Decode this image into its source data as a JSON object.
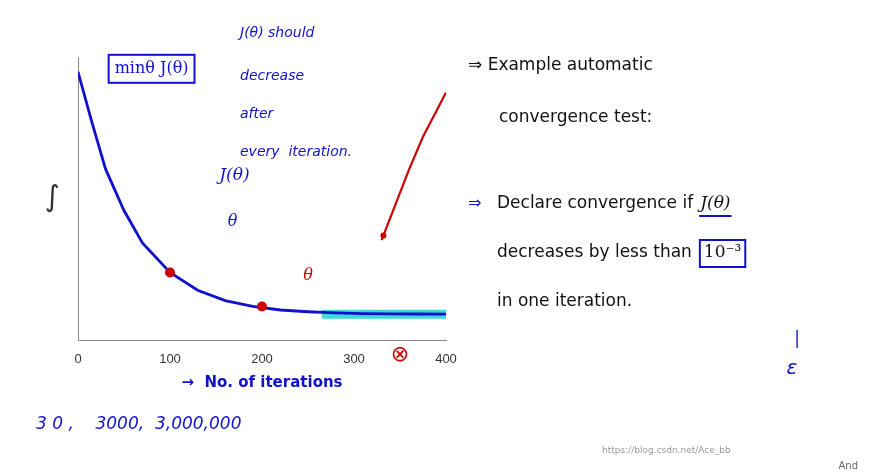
{
  "chart_data": {
    "type": "line",
    "xlabel": "→  No. of iterations",
    "ylabel": "∫",
    "xlim": [
      0,
      400
    ],
    "xticks": [
      0,
      100,
      200,
      300,
      400
    ],
    "ylim": [
      0.04,
      1.0
    ],
    "tick_labels": "x",
    "grid": false,
    "series": [
      {
        "type": "line",
        "color": "#1111cc",
        "x": [
          0,
          15,
          30,
          50,
          70,
          100,
          130,
          160,
          190,
          220,
          250,
          280,
          310,
          340,
          370,
          400
        ],
        "values": [
          0.95,
          0.78,
          0.62,
          0.48,
          0.37,
          0.27,
          0.21,
          0.175,
          0.155,
          0.143,
          0.137,
          0.133,
          0.131,
          0.13,
          0.1295,
          0.129
        ]
      },
      {
        "type": "line",
        "color": "#00cccc",
        "x": [
          265,
          400
        ],
        "values": [
          0.129,
          0.129
        ]
      },
      {
        "type": "scatter",
        "color": "#cc0000",
        "x": [
          100,
          200
        ],
        "values": [
          0.27,
          0.155
        ]
      },
      {
        "type": "line",
        "color": "#cc0000",
        "x": [
          330,
          345,
          360,
          375,
          390,
          400
        ],
        "values": [
          0.38,
          0.5,
          0.62,
          0.73,
          0.82,
          0.88
        ]
      },
      {
        "type": "scatter",
        "color": "#cc0000",
        "x": [
          332
        ],
        "values": [
          0.395
        ]
      }
    ],
    "annotations": [
      {
        "text": "minθ J(θ)",
        "x": 80,
        "y": 0.96,
        "color": "#1111cc"
      },
      {
        "text": "J(θ)",
        "x": 170,
        "y": 0.6,
        "color": "#1111cc"
      },
      {
        "text": "θ",
        "x": 168,
        "y": 0.44,
        "color": "#1111cc"
      },
      {
        "text": "θ",
        "x": 250,
        "y": 0.258,
        "color": "#cc0000"
      },
      {
        "text": "J(θ) should",
        "color": "#1111cc"
      },
      {
        "text": "decrease",
        "color": "#1111cc"
      },
      {
        "text": "after",
        "color": "#1111cc"
      },
      {
        "text": "every  iteration.",
        "color": "#1111cc"
      },
      {
        "text": "⊗",
        "color": "#cc0000"
      },
      {
        "text": "3 0 ,    3000,  3,000,000",
        "color": "#1111cc"
      },
      {
        "text": "⇒ Example automatic",
        "color": "#111111"
      },
      {
        "text": "convergence test:",
        "color": "#111111"
      },
      {
        "text": "⇒",
        "color": "#1111cc"
      },
      {
        "text": "Declare convergence if",
        "color": "#111111"
      },
      {
        "text": "J(θ)",
        "color": "#111111"
      },
      {
        "text": "decreases by less than",
        "color": "#111111"
      },
      {
        "text": "10⁻³",
        "color": "#111111"
      },
      {
        "text": "in one iteration.",
        "color": "#111111"
      },
      {
        "text": "|",
        "color": "#1111cc"
      },
      {
        "text": "ε",
        "color": "#1111cc"
      },
      {
        "text": "https://blog.csdn.net/Ace_bb",
        "color": "#999999"
      },
      {
        "text": "And",
        "color": "#666666"
      }
    ]
  }
}
